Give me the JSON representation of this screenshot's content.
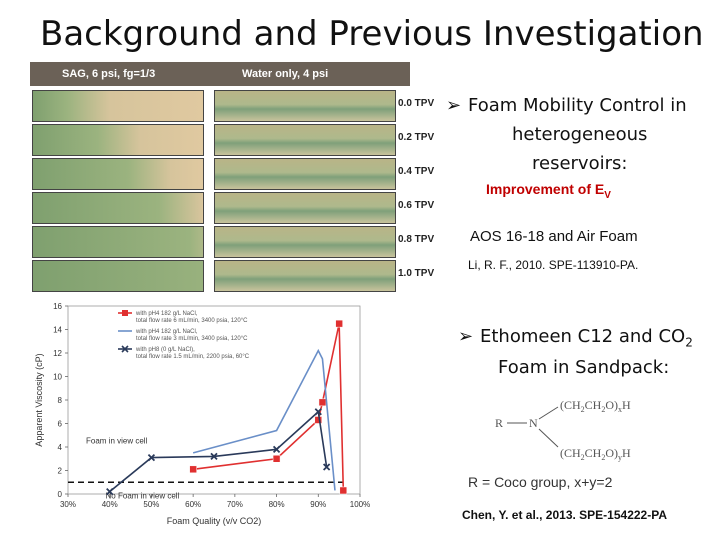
{
  "slide": {
    "title": "Background and Previous Investigation"
  },
  "photo": {
    "left_header": "SAG, 6 psi, fg=1/3",
    "right_header": "Water only, 4 psi",
    "tpv_labels": [
      "0.0 TPV",
      "0.2 TPV",
      "0.4 TPV",
      "0.6 TPV",
      "0.8 TPV",
      "1.0 TPV"
    ]
  },
  "right_text": {
    "bullet1_line1": "Foam Mobility Control in",
    "bullet1_line2": "heterogeneous",
    "bullet1_line3": "reservoirs:",
    "improvement": "Improvement of E",
    "improvement_sub": "V",
    "aos": "AOS 16-18 and Air Foam",
    "ref1": "Li, R. F., 2010. SPE-113910-PA.",
    "bullet2_line1": "Ethomeen C12 and CO",
    "bullet2_sub": "2",
    "bullet2_line2": "Foam in Sandpack:",
    "coco": "R = Coco group, x+y=2",
    "ref2": "Chen, Y. et al., 2013. SPE-154222-PA"
  },
  "structure": {
    "r": "R",
    "n": "N",
    "top_group": "(CH2CH2O)xH",
    "bottom_group": "(CH2CH2O)yH"
  },
  "chart_data": {
    "type": "line",
    "xlabel": "Foam Quality (v/v CO2)",
    "ylabel": "Apparent Viscosity (cP)",
    "x_ticks": [
      "30%",
      "40%",
      "50%",
      "60%",
      "70%",
      "80%",
      "90%",
      "100%"
    ],
    "y_ticks": [
      0,
      2,
      4,
      6,
      8,
      10,
      12,
      14,
      16
    ],
    "xlim": [
      30,
      100
    ],
    "ylim": [
      0,
      16
    ],
    "annotations": [
      "Foam in view cell",
      "No Foam in view cell"
    ],
    "series": [
      {
        "name": "with pH4 182 g/L NaCl, total flow rate 6 mL/min, 3400 psia, 120°C",
        "color": "#e03030",
        "marker": "square",
        "points": [
          [
            60,
            2.1
          ],
          [
            80,
            3.0
          ],
          [
            90,
            6.3
          ],
          [
            91,
            7.8
          ],
          [
            95,
            14.5
          ],
          [
            96,
            0.3
          ]
        ]
      },
      {
        "name": "with pH4 182 g/L NaCl, total flow rate 3 mL/min, 3400 psia, 120°C",
        "color": "#6a8fc8",
        "marker": "none",
        "points": [
          [
            60,
            3.5
          ],
          [
            80,
            5.4
          ],
          [
            90,
            12.2
          ],
          [
            91,
            11.5
          ],
          [
            94,
            0.3
          ]
        ]
      },
      {
        "name": "with pH8 (0 g/L NaCl), total flow rate 1.5 mL/min, 2200 psia, 60°C",
        "color": "#2a3a5a",
        "marker": "x",
        "points": [
          [
            40,
            0.2
          ],
          [
            50,
            3.1
          ],
          [
            65,
            3.2
          ],
          [
            80,
            3.8
          ],
          [
            90,
            7.0
          ],
          [
            92,
            2.3
          ]
        ]
      }
    ]
  },
  "colors": {
    "title": "#111111",
    "red_text": "#c00000",
    "red_series": "#e03030",
    "blue_series": "#6a8fc8",
    "dark_series": "#2a3a5a",
    "photo_bg": "#6b6157"
  }
}
